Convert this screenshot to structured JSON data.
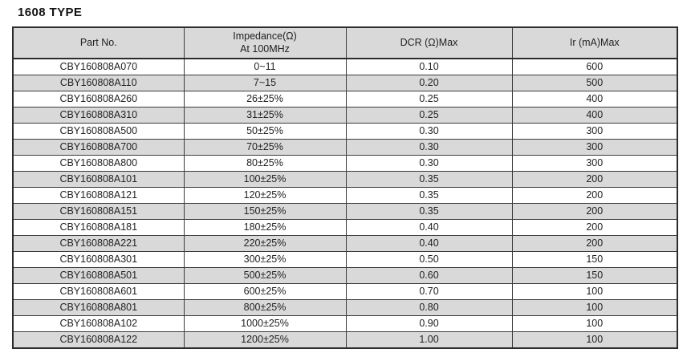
{
  "page": {
    "title": "1608 TYPE"
  },
  "colors": {
    "header_bg": "#d9d9d9",
    "alt_row_bg": "#d9d9d9",
    "border": "#2b2b2b",
    "text": "#1f1f1f"
  },
  "table": {
    "columns": [
      {
        "label": "Part No."
      },
      {
        "label_line1": "Impedance(Ω)",
        "label_line2": "At 100MHz"
      },
      {
        "label": "DCR (Ω)Max"
      },
      {
        "label": "Ir (mA)Max"
      }
    ],
    "rows": [
      {
        "part_no": "CBY160808A070",
        "impedance": "0~11",
        "dcr": "0.10",
        "ir": "600"
      },
      {
        "part_no": "CBY160808A110",
        "impedance": "7~15",
        "dcr": "0.20",
        "ir": "500"
      },
      {
        "part_no": "CBY160808A260",
        "impedance": "26±25%",
        "dcr": "0.25",
        "ir": "400"
      },
      {
        "part_no": "CBY160808A310",
        "impedance": "31±25%",
        "dcr": "0.25",
        "ir": "400"
      },
      {
        "part_no": "CBY160808A500",
        "impedance": "50±25%",
        "dcr": "0.30",
        "ir": "300"
      },
      {
        "part_no": "CBY160808A700",
        "impedance": "70±25%",
        "dcr": "0.30",
        "ir": "300"
      },
      {
        "part_no": "CBY160808A800",
        "impedance": "80±25%",
        "dcr": "0.30",
        "ir": "300"
      },
      {
        "part_no": "CBY160808A101",
        "impedance": "100±25%",
        "dcr": "0.35",
        "ir": "200"
      },
      {
        "part_no": "CBY160808A121",
        "impedance": "120±25%",
        "dcr": "0.35",
        "ir": "200"
      },
      {
        "part_no": "CBY160808A151",
        "impedance": "150±25%",
        "dcr": "0.35",
        "ir": "200"
      },
      {
        "part_no": "CBY160808A181",
        "impedance": "180±25%",
        "dcr": "0.40",
        "ir": "200"
      },
      {
        "part_no": "CBY160808A221",
        "impedance": "220±25%",
        "dcr": "0.40",
        "ir": "200"
      },
      {
        "part_no": "CBY160808A301",
        "impedance": "300±25%",
        "dcr": "0.50",
        "ir": "150"
      },
      {
        "part_no": "CBY160808A501",
        "impedance": "500±25%",
        "dcr": "0.60",
        "ir": "150"
      },
      {
        "part_no": "CBY160808A601",
        "impedance": "600±25%",
        "dcr": "0.70",
        "ir": "100"
      },
      {
        "part_no": "CBY160808A801",
        "impedance": "800±25%",
        "dcr": "0.80",
        "ir": "100"
      },
      {
        "part_no": "CBY160808A102",
        "impedance": "1000±25%",
        "dcr": "0.90",
        "ir": "100"
      },
      {
        "part_no": "CBY160808A122",
        "impedance": "1200±25%",
        "dcr": "1.00",
        "ir": "100"
      }
    ]
  }
}
